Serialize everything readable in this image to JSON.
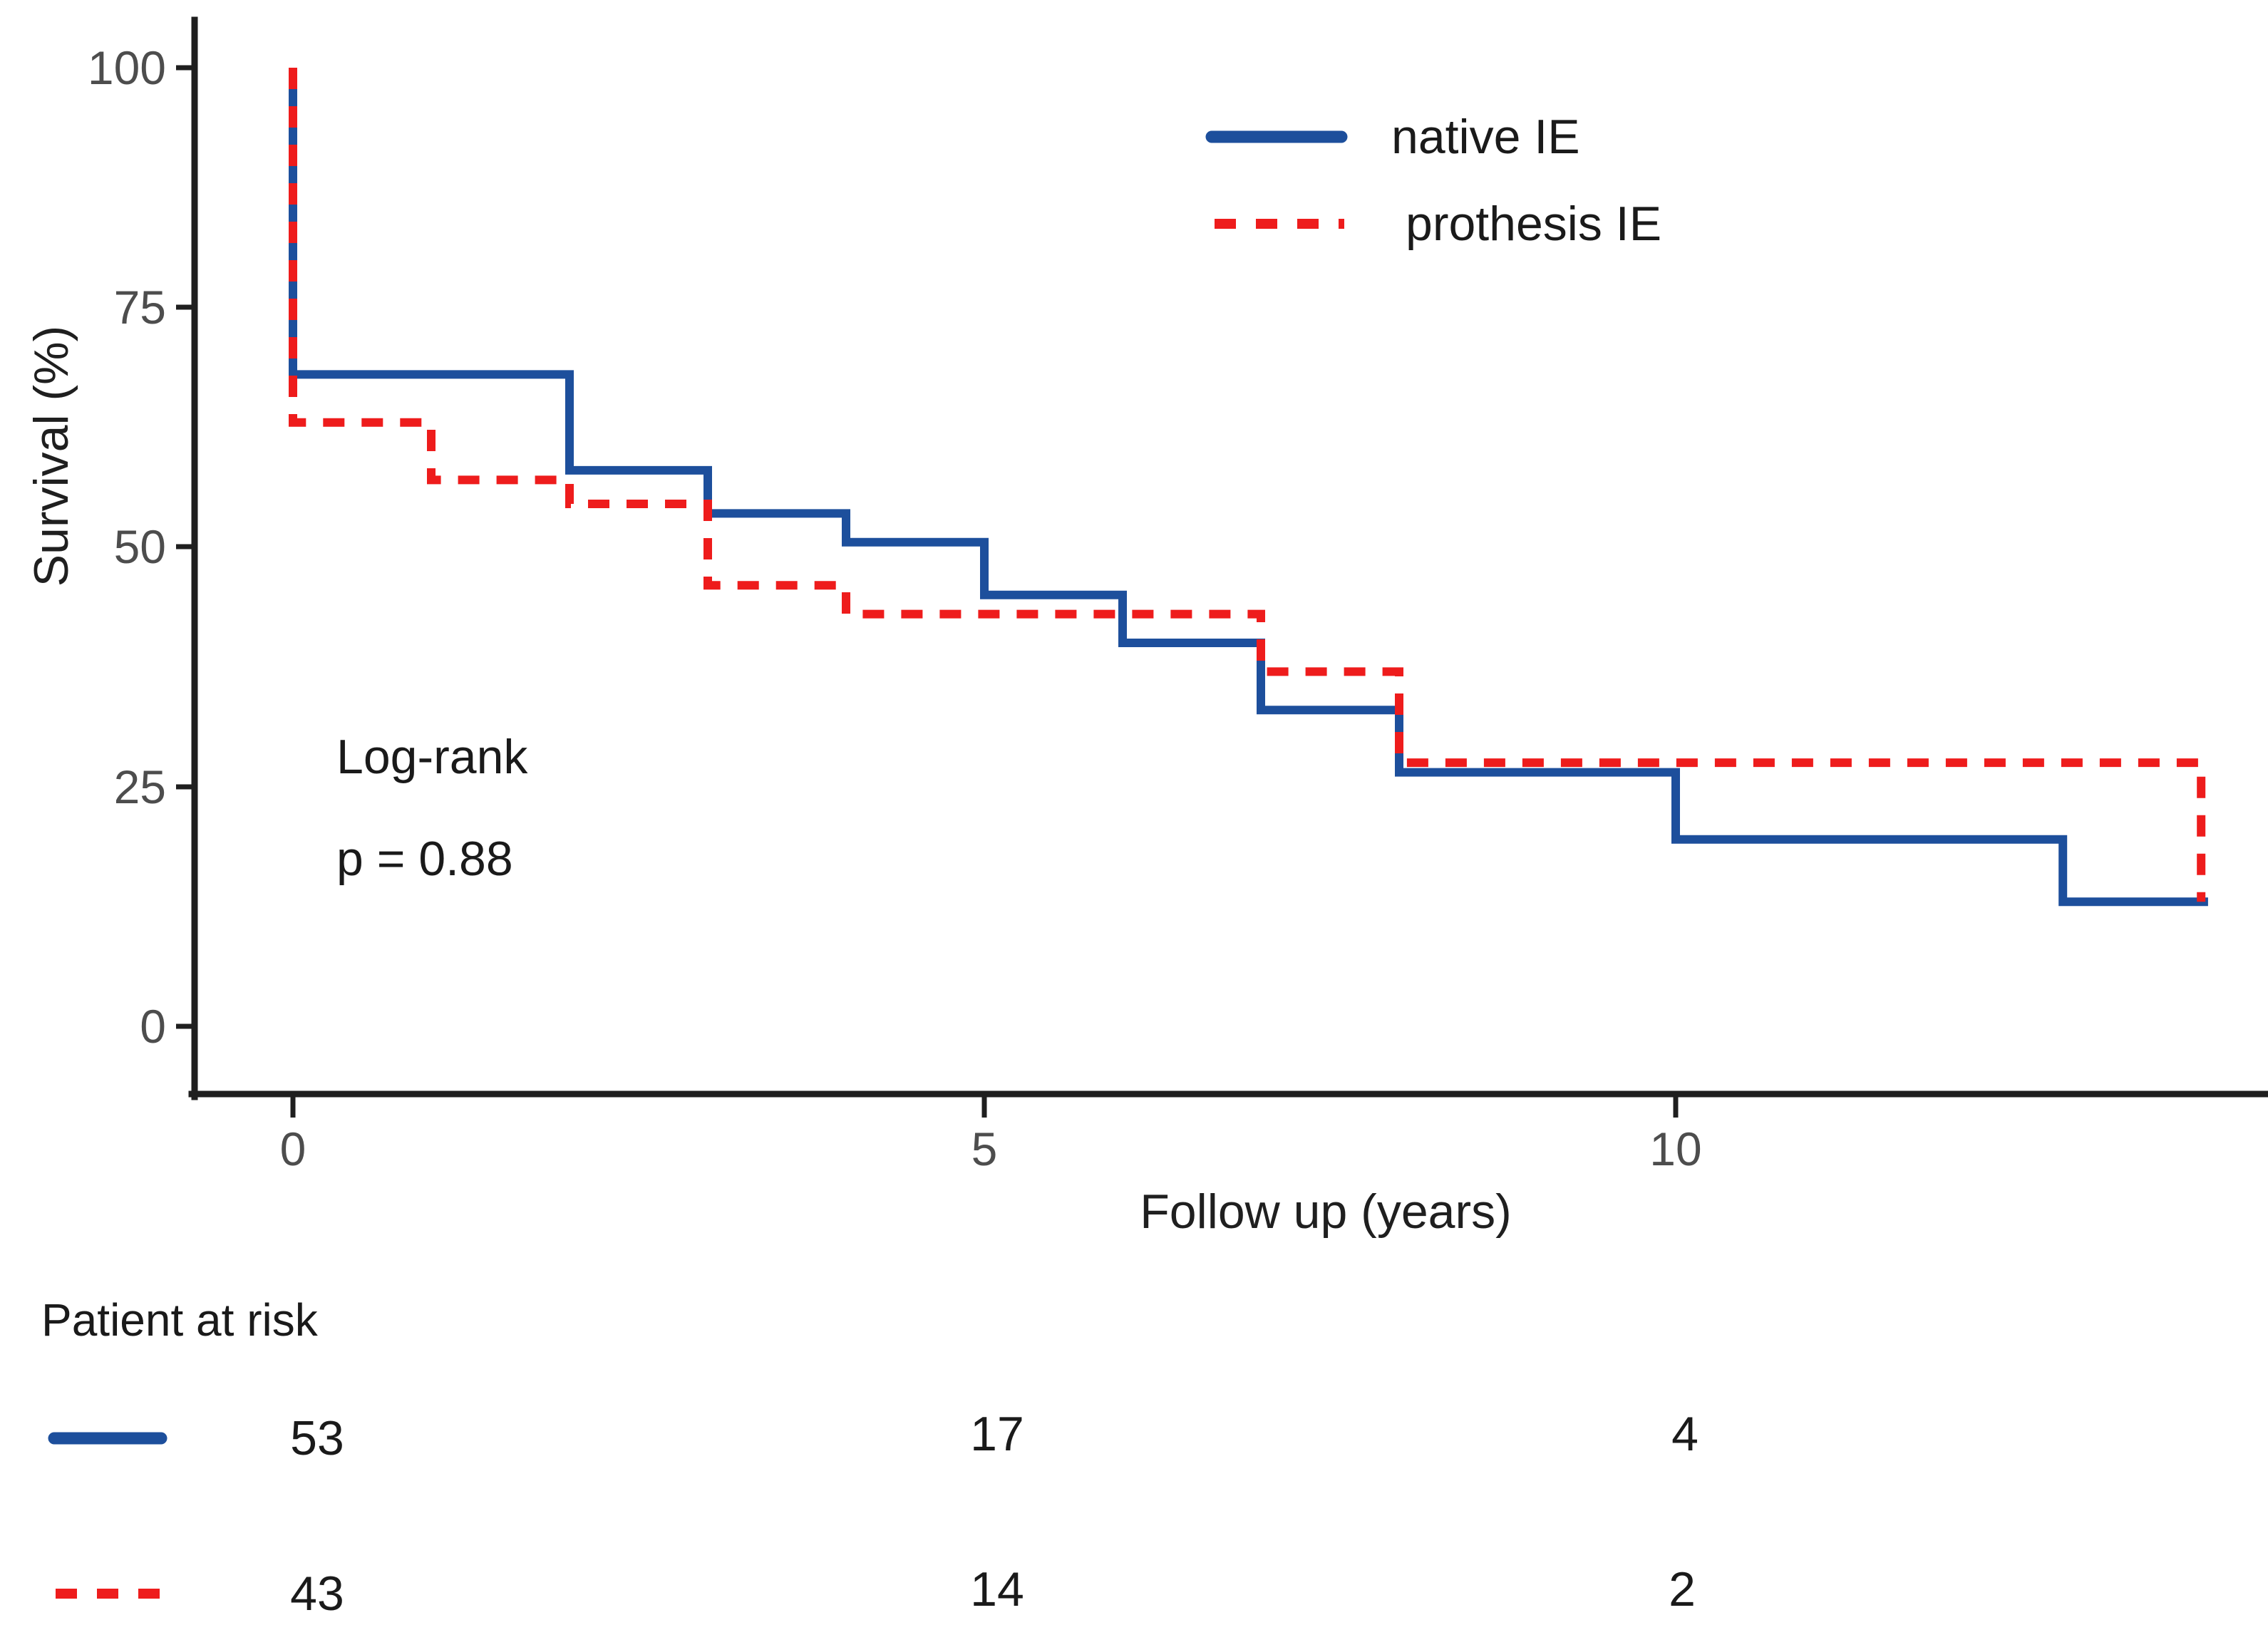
{
  "colors": {
    "native_ie": "#1d4f9c",
    "prothesis_ie": "#ee1c1c",
    "axis": "#1f1f1f",
    "tick_label": "#4d4d4d",
    "text": "#1a1a1a"
  },
  "chart_data": {
    "type": "line",
    "subtype": "kaplan-meier-step",
    "title": "",
    "xlabel": "Follow up (years)",
    "ylabel": "Survival (%)",
    "xlim": [
      0,
      13.85
    ],
    "ylim": [
      0,
      100
    ],
    "x_ticks": [
      0,
      5,
      10
    ],
    "y_ticks": [
      0,
      25,
      50,
      75,
      100
    ],
    "x_tick_labels": [
      "0",
      "5",
      "10"
    ],
    "y_tick_labels": [
      "100",
      "75",
      "50",
      "25",
      "0"
    ],
    "grid": false,
    "legend_position": "top-right-inside",
    "annotation": [
      "Log-rank",
      "p = 0.88"
    ],
    "series": [
      {
        "name": "native IE",
        "color": "#1d4f9c",
        "line_style": "solid",
        "step_points": [
          [
            0,
            100
          ],
          [
            0,
            68
          ],
          [
            2,
            68
          ],
          [
            2,
            58
          ],
          [
            3,
            58
          ],
          [
            3,
            53.5
          ],
          [
            4,
            53.5
          ],
          [
            4,
            50.5
          ],
          [
            5,
            50.5
          ],
          [
            5,
            45
          ],
          [
            6,
            45
          ],
          [
            6,
            40
          ],
          [
            7,
            40
          ],
          [
            7,
            33
          ],
          [
            8,
            33
          ],
          [
            8,
            26.5
          ],
          [
            10,
            26.5
          ],
          [
            10,
            19.5
          ],
          [
            12.8,
            19.5
          ],
          [
            12.8,
            13
          ],
          [
            13.85,
            13
          ]
        ]
      },
      {
        "name": "prothesis IE",
        "color": "#ee1c1c",
        "line_style": "dashed",
        "step_points": [
          [
            0,
            100
          ],
          [
            0,
            63
          ],
          [
            1,
            63
          ],
          [
            1,
            57
          ],
          [
            2,
            57
          ],
          [
            2,
            54.5
          ],
          [
            3,
            54.5
          ],
          [
            3,
            46
          ],
          [
            4,
            46
          ],
          [
            4,
            43
          ],
          [
            7,
            43
          ],
          [
            7,
            37
          ],
          [
            8,
            37
          ],
          [
            8,
            27.5
          ],
          [
            13.8,
            27.5
          ],
          [
            13.8,
            13
          ]
        ]
      }
    ],
    "risk_table": {
      "title": "Patient at risk",
      "times": [
        0,
        5,
        10
      ],
      "rows": [
        {
          "name": "native IE",
          "line_style": "solid",
          "counts": [
            "53",
            "17",
            "4"
          ]
        },
        {
          "name": "prothesis IE",
          "line_style": "dashed",
          "counts": [
            "43",
            "14",
            "2"
          ]
        }
      ]
    }
  }
}
